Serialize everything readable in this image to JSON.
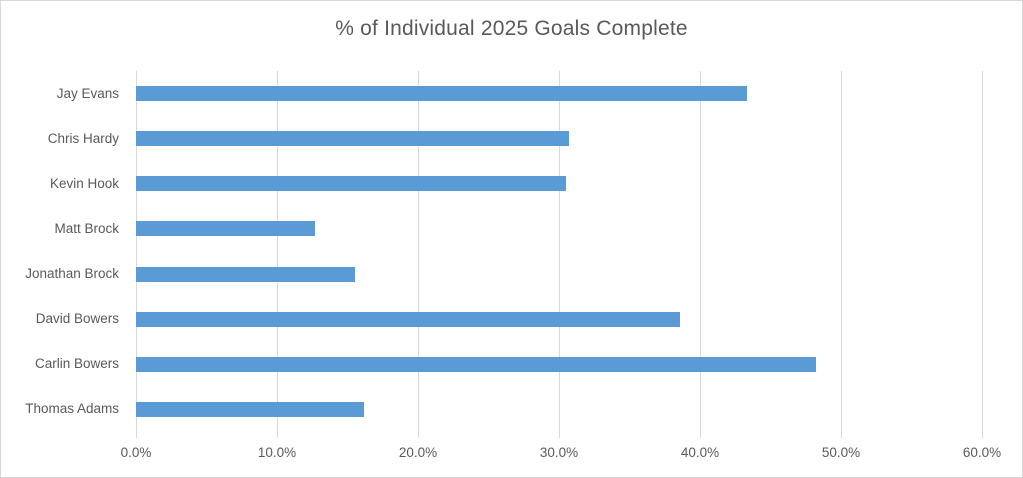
{
  "title": "% of Individual 2025 Goals Complete",
  "colors": {
    "bar": "#5b9bd5",
    "gridline": "#d9d9d9",
    "axis_line": "#d9d9d9",
    "label_text": "#595959",
    "title_text": "#595959",
    "frame_border": "#d7d7d7",
    "background": "#ffffff"
  },
  "chart_data": {
    "type": "bar",
    "orientation": "horizontal",
    "title": "% of Individual 2025 Goals Complete",
    "categories_top_to_bottom": [
      "Jay Evans",
      "Chris Hardy",
      "Kevin Hook",
      "Matt Brock",
      "Jonathan Brock",
      "David Bowers",
      "Carlin Bowers",
      "Thomas Adams"
    ],
    "values_percent": [
      43.3,
      30.7,
      30.5,
      12.7,
      15.5,
      38.6,
      48.2,
      16.2
    ],
    "unit": "%",
    "xlabel": "",
    "ylabel": "",
    "xlim": [
      0,
      60
    ],
    "x_ticks": [
      0,
      10,
      20,
      30,
      40,
      50,
      60
    ],
    "x_tick_labels": [
      "0.0%",
      "10.0%",
      "20.0%",
      "30.0%",
      "40.0%",
      "50.0%",
      "60.0%"
    ],
    "grid": true,
    "legend": false,
    "data_labels": false
  }
}
